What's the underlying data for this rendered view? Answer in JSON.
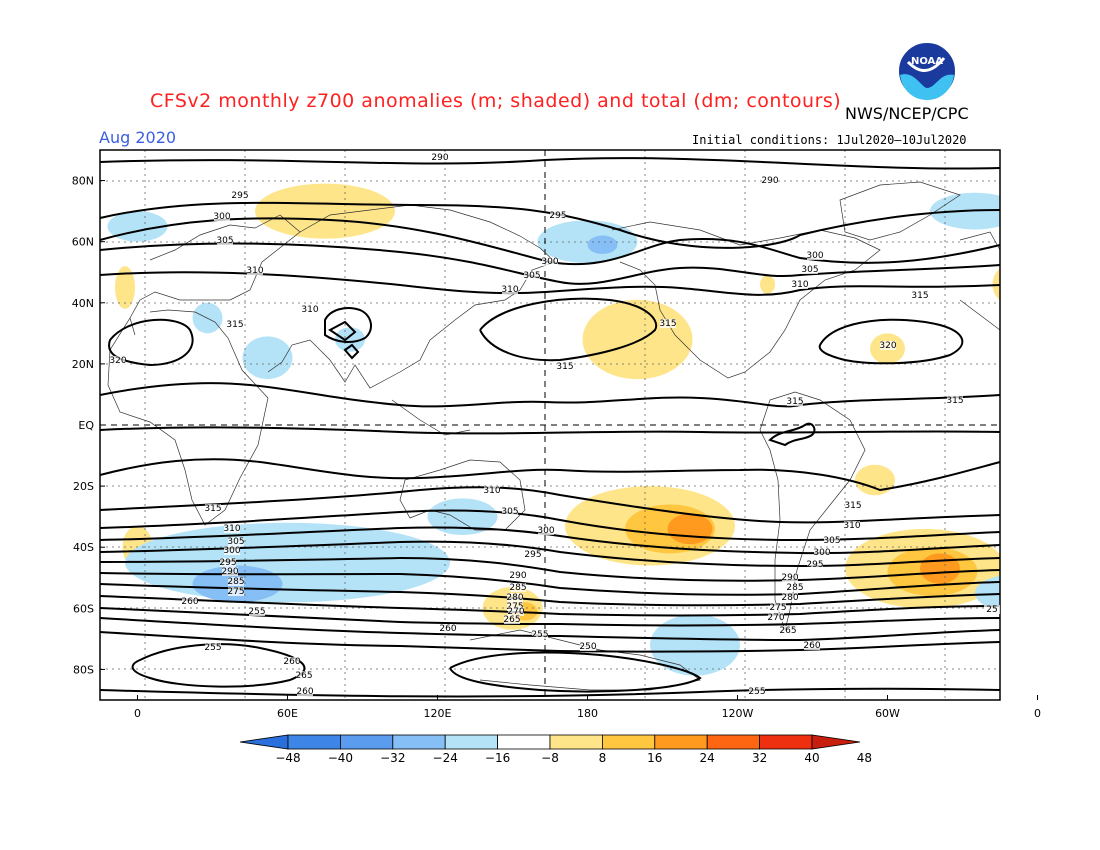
{
  "title": "CFSv2 monthly z700 anomalies (m; shaded) and total (dm; contours)",
  "agency": "NWS/NCEP/CPC",
  "logo_text": "NOAA",
  "period": "Aug 2020",
  "initial_conditions": "Initial conditions: 1Jul2020–10Jul2020",
  "axes": {
    "lat_ticks": [
      "80N",
      "60N",
      "40N",
      "20N",
      "EQ",
      "20S",
      "40S",
      "60S",
      "80S"
    ],
    "lon_ticks": [
      "0",
      "60E",
      "120E",
      "180",
      "120W",
      "60W",
      "0"
    ]
  },
  "colorbar": {
    "labels": [
      "-48",
      "-40",
      "-32",
      "-24",
      "-16",
      "-8",
      "8",
      "16",
      "24",
      "32",
      "40",
      "48"
    ],
    "colors": [
      "#2a6fdb",
      "#3d85e6",
      "#5b9cef",
      "#86bff5",
      "#b4e2f7",
      "#ffffff",
      "#ffe58a",
      "#ffc640",
      "#ff9a1e",
      "#ff6612",
      "#ee3010",
      "#c81e0e"
    ]
  },
  "anomalies": [
    {
      "sign": "pos",
      "level": 1,
      "lon": -5,
      "lat": 45,
      "rx": 4,
      "ry": 7
    },
    {
      "sign": "pos",
      "level": 1,
      "lon": 75,
      "lat": 70,
      "rx": 28,
      "ry": 9
    },
    {
      "sign": "pos",
      "level": 1,
      "lon": 200,
      "lat": 28,
      "rx": 22,
      "ry": 13
    },
    {
      "sign": "pos",
      "level": 1,
      "lon": 300,
      "lat": 25,
      "rx": 7,
      "ry": 5
    },
    {
      "sign": "pos",
      "level": 1,
      "lon": 348,
      "lat": 46,
      "rx": 6,
      "ry": 6
    },
    {
      "sign": "pos",
      "level": 1,
      "lon": 252,
      "lat": 46,
      "rx": 3,
      "ry": 3
    },
    {
      "sign": "pos",
      "level": 1,
      "lon": 205,
      "lat": -33,
      "rx": 34,
      "ry": 13
    },
    {
      "sign": "pos",
      "level": 2,
      "lon": 213,
      "lat": -34,
      "rx": 18,
      "ry": 8
    },
    {
      "sign": "pos",
      "level": 3,
      "lon": 221,
      "lat": -34,
      "rx": 9,
      "ry": 5
    },
    {
      "sign": "pos",
      "level": 1,
      "lon": 150,
      "lat": -60,
      "rx": 12,
      "ry": 7
    },
    {
      "sign": "pos",
      "level": 2,
      "lon": 155,
      "lat": -61,
      "rx": 5,
      "ry": 3
    },
    {
      "sign": "pos",
      "level": 1,
      "lon": 315,
      "lat": -47,
      "rx": 32,
      "ry": 13
    },
    {
      "sign": "pos",
      "level": 2,
      "lon": 318,
      "lat": -48,
      "rx": 18,
      "ry": 8
    },
    {
      "sign": "pos",
      "level": 3,
      "lon": 321,
      "lat": -47,
      "rx": 8,
      "ry": 5
    },
    {
      "sign": "pos",
      "level": 1,
      "lon": 295,
      "lat": -18,
      "rx": 8,
      "ry": 5
    },
    {
      "sign": "pos",
      "level": 1,
      "lon": 0,
      "lat": -40,
      "rx": 6,
      "ry": 7
    },
    {
      "sign": "neg",
      "level": 1,
      "lon": 0,
      "lat": 65,
      "rx": 12,
      "ry": 5
    },
    {
      "sign": "neg",
      "level": 1,
      "lon": 180,
      "lat": 60,
      "rx": 20,
      "ry": 7
    },
    {
      "sign": "neg",
      "level": 2,
      "lon": 186,
      "lat": 59,
      "rx": 6,
      "ry": 3
    },
    {
      "sign": "neg",
      "level": 1,
      "lon": 335,
      "lat": 70,
      "rx": 18,
      "ry": 6
    },
    {
      "sign": "neg",
      "level": 1,
      "lon": 28,
      "lat": 35,
      "rx": 6,
      "ry": 5
    },
    {
      "sign": "neg",
      "level": 1,
      "lon": 52,
      "lat": 22,
      "rx": 10,
      "ry": 7
    },
    {
      "sign": "neg",
      "level": 1,
      "lon": 85,
      "lat": 28,
      "rx": 6,
      "ry": 4
    },
    {
      "sign": "neg",
      "level": 1,
      "lon": 60,
      "lat": -45,
      "rx": 65,
      "ry": 13
    },
    {
      "sign": "neg",
      "level": 2,
      "lon": 40,
      "lat": -52,
      "rx": 18,
      "ry": 6
    },
    {
      "sign": "neg",
      "level": 1,
      "lon": 130,
      "lat": -30,
      "rx": 14,
      "ry": 6
    },
    {
      "sign": "neg",
      "level": 1,
      "lon": 223,
      "lat": -72,
      "rx": 18,
      "ry": 10
    },
    {
      "sign": "neg",
      "level": 1,
      "lon": 350,
      "lat": -55,
      "rx": 15,
      "ry": 6
    }
  ]
}
